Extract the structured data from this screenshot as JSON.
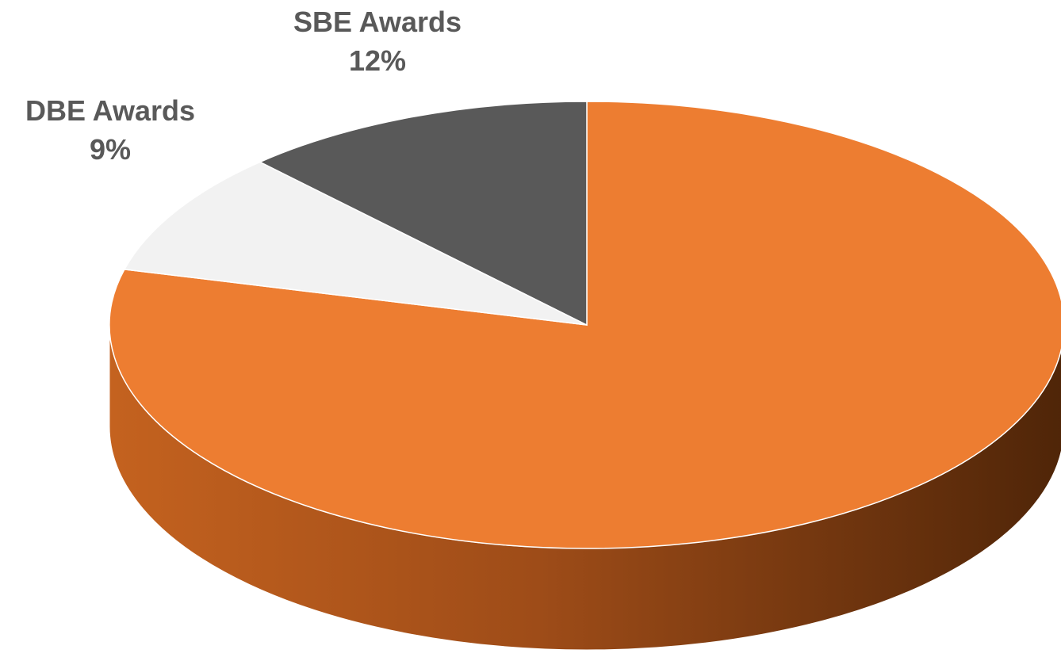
{
  "chart_data": {
    "type": "pie",
    "style": "3d",
    "title": "",
    "slices": [
      {
        "label": "",
        "value": 79,
        "percent_label": "",
        "color": "#ED7D31"
      },
      {
        "label": "DBE Awards",
        "value": 9,
        "percent_label": "9%",
        "color": "#F2F2F2"
      },
      {
        "label": "SBE Awards",
        "value": 12,
        "percent_label": "12%",
        "color": "#595959"
      }
    ],
    "legend": "none"
  }
}
